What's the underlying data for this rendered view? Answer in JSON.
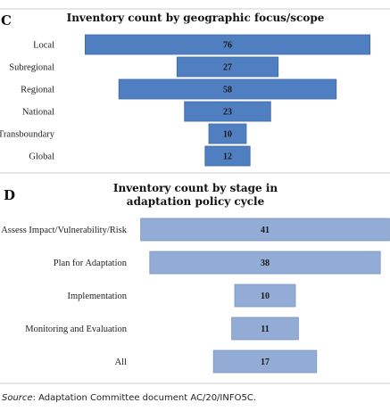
{
  "source": {
    "label": "Source",
    "text": ": Adaptation Committee document AC/20/INFO5C."
  },
  "chart_data": [
    {
      "panel": "C",
      "type": "bar",
      "orientation": "horizontal-centered",
      "title": "Inventory count by geographic focus/scope",
      "categories": [
        "Local",
        "Subregional",
        "Regional",
        "National",
        "Transboundary",
        "Global"
      ],
      "values": [
        76,
        27,
        58,
        23,
        10,
        12
      ],
      "colors": {
        "bar_fill": "#4f7fc1",
        "bar_stroke": "#3d68a6"
      }
    },
    {
      "panel": "D",
      "type": "bar",
      "orientation": "horizontal-centered",
      "title": [
        "Inventory count by stage in",
        "adaptation policy cycle"
      ],
      "categories": [
        "Assess Impact/Vulnerability/Risk",
        "Plan for Adaptation",
        "Implementation",
        "Monitoring and Evaluation",
        "All"
      ],
      "values": [
        41,
        38,
        10,
        11,
        17
      ],
      "colors": {
        "bar_fill": "#93acd6",
        "bar_stroke": "#7a95c4"
      }
    }
  ]
}
